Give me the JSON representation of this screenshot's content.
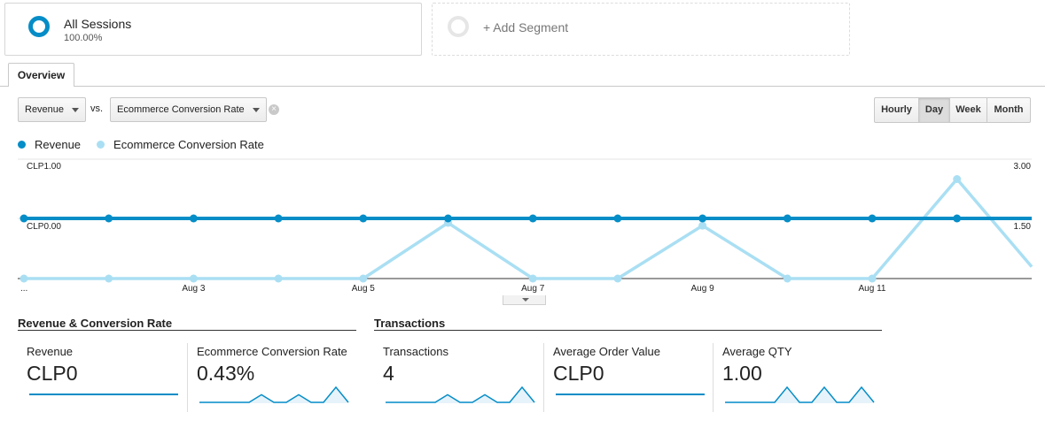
{
  "segments": {
    "all_sessions": {
      "title": "All Sessions",
      "percent": "100.00%"
    },
    "add_segment": {
      "label": "+ Add Segment"
    }
  },
  "tabs": [
    {
      "label": "Overview",
      "active": true
    }
  ],
  "controls": {
    "metric1": "Revenue",
    "vs": "vs.",
    "metric2": "Ecommerce Conversion Rate",
    "granularity": [
      "Hourly",
      "Day",
      "Week",
      "Month"
    ],
    "granularity_selected": "Day"
  },
  "legend": [
    {
      "name": "Revenue",
      "color": "#058dc7"
    },
    {
      "name": "Ecommerce Conversion Rate",
      "color": "#aadff3"
    }
  ],
  "chart_data": {
    "type": "line",
    "x": [
      "...",
      "Aug 2",
      "Aug 3",
      "Aug 4",
      "Aug 5",
      "Aug 6",
      "Aug 7",
      "Aug 8",
      "Aug 9",
      "Aug 10",
      "Aug 11",
      "Aug 12",
      "Aug 13"
    ],
    "x_tick_labels": [
      "...",
      "Aug 3",
      "Aug 5",
      "Aug 7",
      "Aug 9",
      "Aug 11"
    ],
    "left_axis_labels": [
      "CLP1.00",
      "CLP0.00"
    ],
    "right_axis_labels": [
      "3.00",
      "1.50"
    ],
    "left_axis": {
      "series": "Revenue",
      "max": 1.0,
      "mid": 0.0
    },
    "right_axis": {
      "series": "Ecommerce Conversion Rate",
      "max": 3.0,
      "mid": 1.5
    },
    "series": [
      {
        "name": "Revenue",
        "color": "#058dc7",
        "axis": "left",
        "values": [
          0,
          0,
          0,
          0,
          0,
          0,
          0,
          0,
          0,
          0,
          0,
          0,
          0
        ]
      },
      {
        "name": "Ecommerce Conversion Rate",
        "color": "#aadff3",
        "axis": "right",
        "values": [
          0,
          0,
          0,
          0,
          0,
          1.4,
          0,
          0,
          1.33,
          0,
          0,
          2.5,
          0
        ]
      }
    ]
  },
  "scorecards": {
    "groups": [
      {
        "title": "Revenue & Conversion Rate"
      },
      {
        "title": "Transactions"
      }
    ],
    "cards": [
      {
        "label": "Revenue",
        "value": "CLP0",
        "spark": [
          0,
          0,
          0,
          0,
          0,
          0,
          0,
          0,
          0,
          0,
          0,
          0,
          0
        ]
      },
      {
        "label": "Ecommerce Conversion Rate",
        "value": "0.43%",
        "spark": [
          0,
          0,
          0,
          0,
          0,
          1,
          0,
          0,
          1,
          0,
          0,
          2,
          0
        ]
      },
      {
        "label": "Transactions",
        "value": "4",
        "spark": [
          0,
          0,
          0,
          0,
          0,
          1,
          0,
          0,
          1,
          0,
          0,
          2,
          0
        ]
      },
      {
        "label": "Average Order Value",
        "value": "CLP0",
        "spark": [
          0,
          0,
          0,
          0,
          0,
          0,
          0,
          0,
          0,
          0,
          0,
          0,
          0
        ]
      },
      {
        "label": "Average QTY",
        "value": "1.00",
        "spark": [
          0,
          0,
          0,
          0,
          0,
          1,
          0,
          0,
          1,
          0,
          0,
          1,
          0
        ]
      }
    ]
  }
}
